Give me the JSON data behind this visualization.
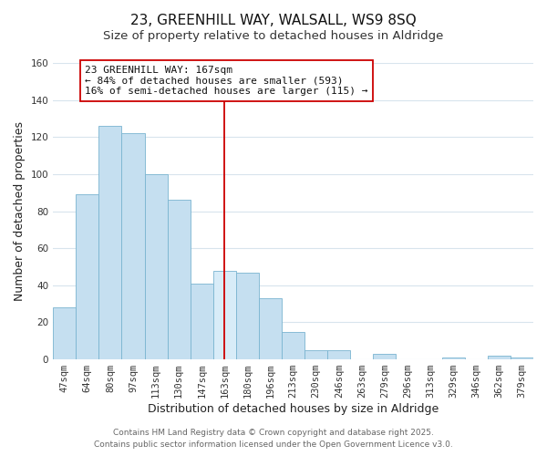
{
  "title": "23, GREENHILL WAY, WALSALL, WS9 8SQ",
  "subtitle": "Size of property relative to detached houses in Aldridge",
  "xlabel": "Distribution of detached houses by size in Aldridge",
  "ylabel": "Number of detached properties",
  "bin_labels": [
    "47sqm",
    "64sqm",
    "80sqm",
    "97sqm",
    "113sqm",
    "130sqm",
    "147sqm",
    "163sqm",
    "180sqm",
    "196sqm",
    "213sqm",
    "230sqm",
    "246sqm",
    "263sqm",
    "279sqm",
    "296sqm",
    "313sqm",
    "329sqm",
    "346sqm",
    "362sqm",
    "379sqm"
  ],
  "bar_heights": [
    28,
    89,
    126,
    122,
    100,
    86,
    41,
    48,
    47,
    33,
    15,
    5,
    5,
    0,
    3,
    0,
    0,
    1,
    0,
    2,
    1
  ],
  "bar_color": "#c5dff0",
  "bar_edge_color": "#7ab4d0",
  "highlight_bin_index": 7,
  "highlight_color": "#d8ecf8",
  "vline_color": "#cc0000",
  "annotation_text": "23 GREENHILL WAY: 167sqm\n← 84% of detached houses are smaller (593)\n16% of semi-detached houses are larger (115) →",
  "annotation_box_color": "#ffffff",
  "annotation_box_edge": "#cc0000",
  "ylim": [
    0,
    160
  ],
  "yticks": [
    0,
    20,
    40,
    60,
    80,
    100,
    120,
    140,
    160
  ],
  "footer1": "Contains HM Land Registry data © Crown copyright and database right 2025.",
  "footer2": "Contains public sector information licensed under the Open Government Licence v3.0.",
  "background_color": "#ffffff",
  "grid_color": "#d8e4ed",
  "title_fontsize": 11,
  "subtitle_fontsize": 9.5,
  "axis_label_fontsize": 9,
  "tick_fontsize": 7.5,
  "annotation_fontsize": 8,
  "footer_fontsize": 6.5
}
